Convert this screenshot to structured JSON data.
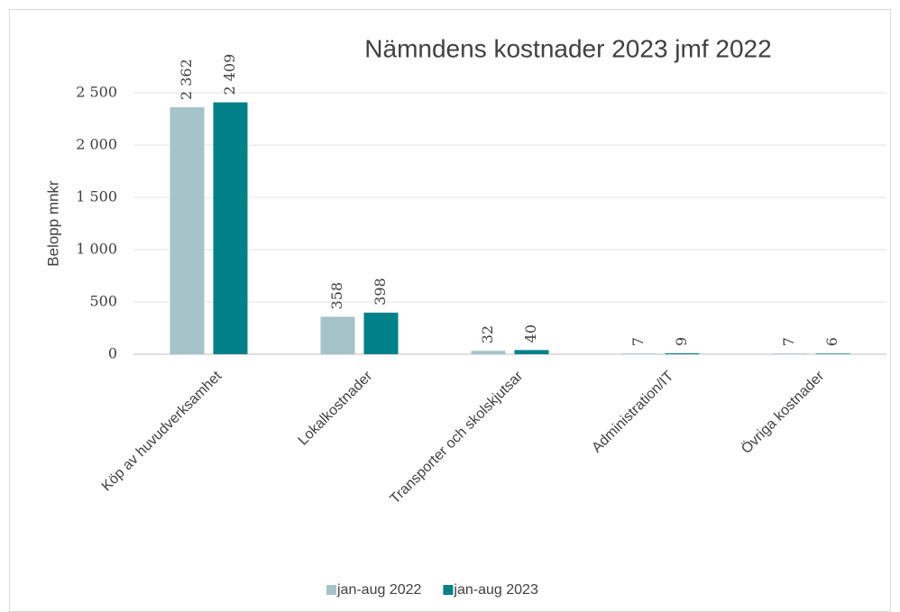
{
  "chart_data": {
    "type": "bar",
    "title": "Nämndens kostnader 2023 jmf 2022",
    "y_label": "Belopp mnkr",
    "categories": [
      "Köp av huvudverksamhet",
      "Lokalkostnader",
      "Transporter och skolskjutsar",
      "Administration/IT",
      "Övriga kostnader"
    ],
    "series": [
      {
        "name": "jan-aug 2022",
        "color": "#a5c3c8",
        "values": [
          2362,
          358,
          32,
          7,
          7
        ],
        "value_labels": [
          "2 362",
          "358",
          "32",
          "7",
          "7"
        ]
      },
      {
        "name": "jan-aug 2023",
        "color": "#00818a",
        "values": [
          2409,
          398,
          40,
          9,
          6
        ],
        "value_labels": [
          "2 409",
          "398",
          "40",
          "9",
          "6"
        ]
      }
    ],
    "ylim": [
      0,
      2500
    ],
    "yticks": [
      0,
      500,
      {
        "value": 1000,
        "label": "1 000"
      },
      {
        "value": 1500,
        "label": "1 500"
      },
      {
        "value": 2000,
        "label": "2 000"
      },
      {
        "value": 2500,
        "label": "2 500"
      }
    ],
    "grid": true,
    "legend": "bottom"
  }
}
